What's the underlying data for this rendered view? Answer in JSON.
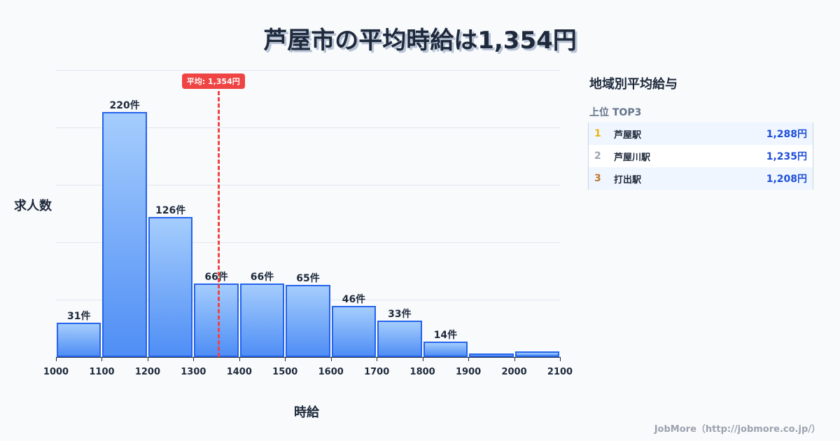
{
  "title": "芦屋市の平均時給は1,354円",
  "chart_data": {
    "type": "bar",
    "title": "芦屋市の平均時給は1,354円",
    "xlabel": "時給",
    "ylabel": "求人数",
    "bin_edges": [
      1000,
      1100,
      1200,
      1300,
      1400,
      1500,
      1600,
      1700,
      1800,
      1900,
      2000,
      2100
    ],
    "categories": [
      "1000-1100",
      "1100-1200",
      "1200-1300",
      "1300-1400",
      "1400-1500",
      "1500-1600",
      "1600-1700",
      "1700-1800",
      "1800-1900",
      "1900-2000",
      "2000-2100"
    ],
    "values": [
      31,
      220,
      126,
      66,
      66,
      65,
      46,
      33,
      14,
      3,
      5
    ],
    "labels": [
      "31件",
      "220件",
      "126件",
      "66件",
      "66件",
      "65件",
      "46件",
      "33件",
      "14件",
      "",
      ""
    ],
    "xticks": [
      "1000",
      "1100",
      "1200",
      "1300",
      "1400",
      "1500",
      "1600",
      "1700",
      "1800",
      "1900",
      "2000",
      "2100"
    ],
    "ylim": [
      0,
      258
    ],
    "grid": true,
    "average": {
      "value": 1354,
      "label": "平均: 1,354円",
      "color": "#ef4444"
    },
    "bar_color": "#3b82f6",
    "bar_border": "#2563eb"
  },
  "sidebar": {
    "title": "地域別平均給与",
    "subtitle": "上位 TOP3",
    "items": [
      {
        "rank": "1",
        "name": "芦屋駅",
        "value": "1,288円",
        "rank_color": "#eab308"
      },
      {
        "rank": "2",
        "name": "芦屋川駅",
        "value": "1,235円",
        "rank_color": "#9ca3af"
      },
      {
        "rank": "3",
        "name": "打出駅",
        "value": "1,208円",
        "rank_color": "#c2772e"
      }
    ]
  },
  "footer": "JobMore（http://jobmore.co.jp/）"
}
